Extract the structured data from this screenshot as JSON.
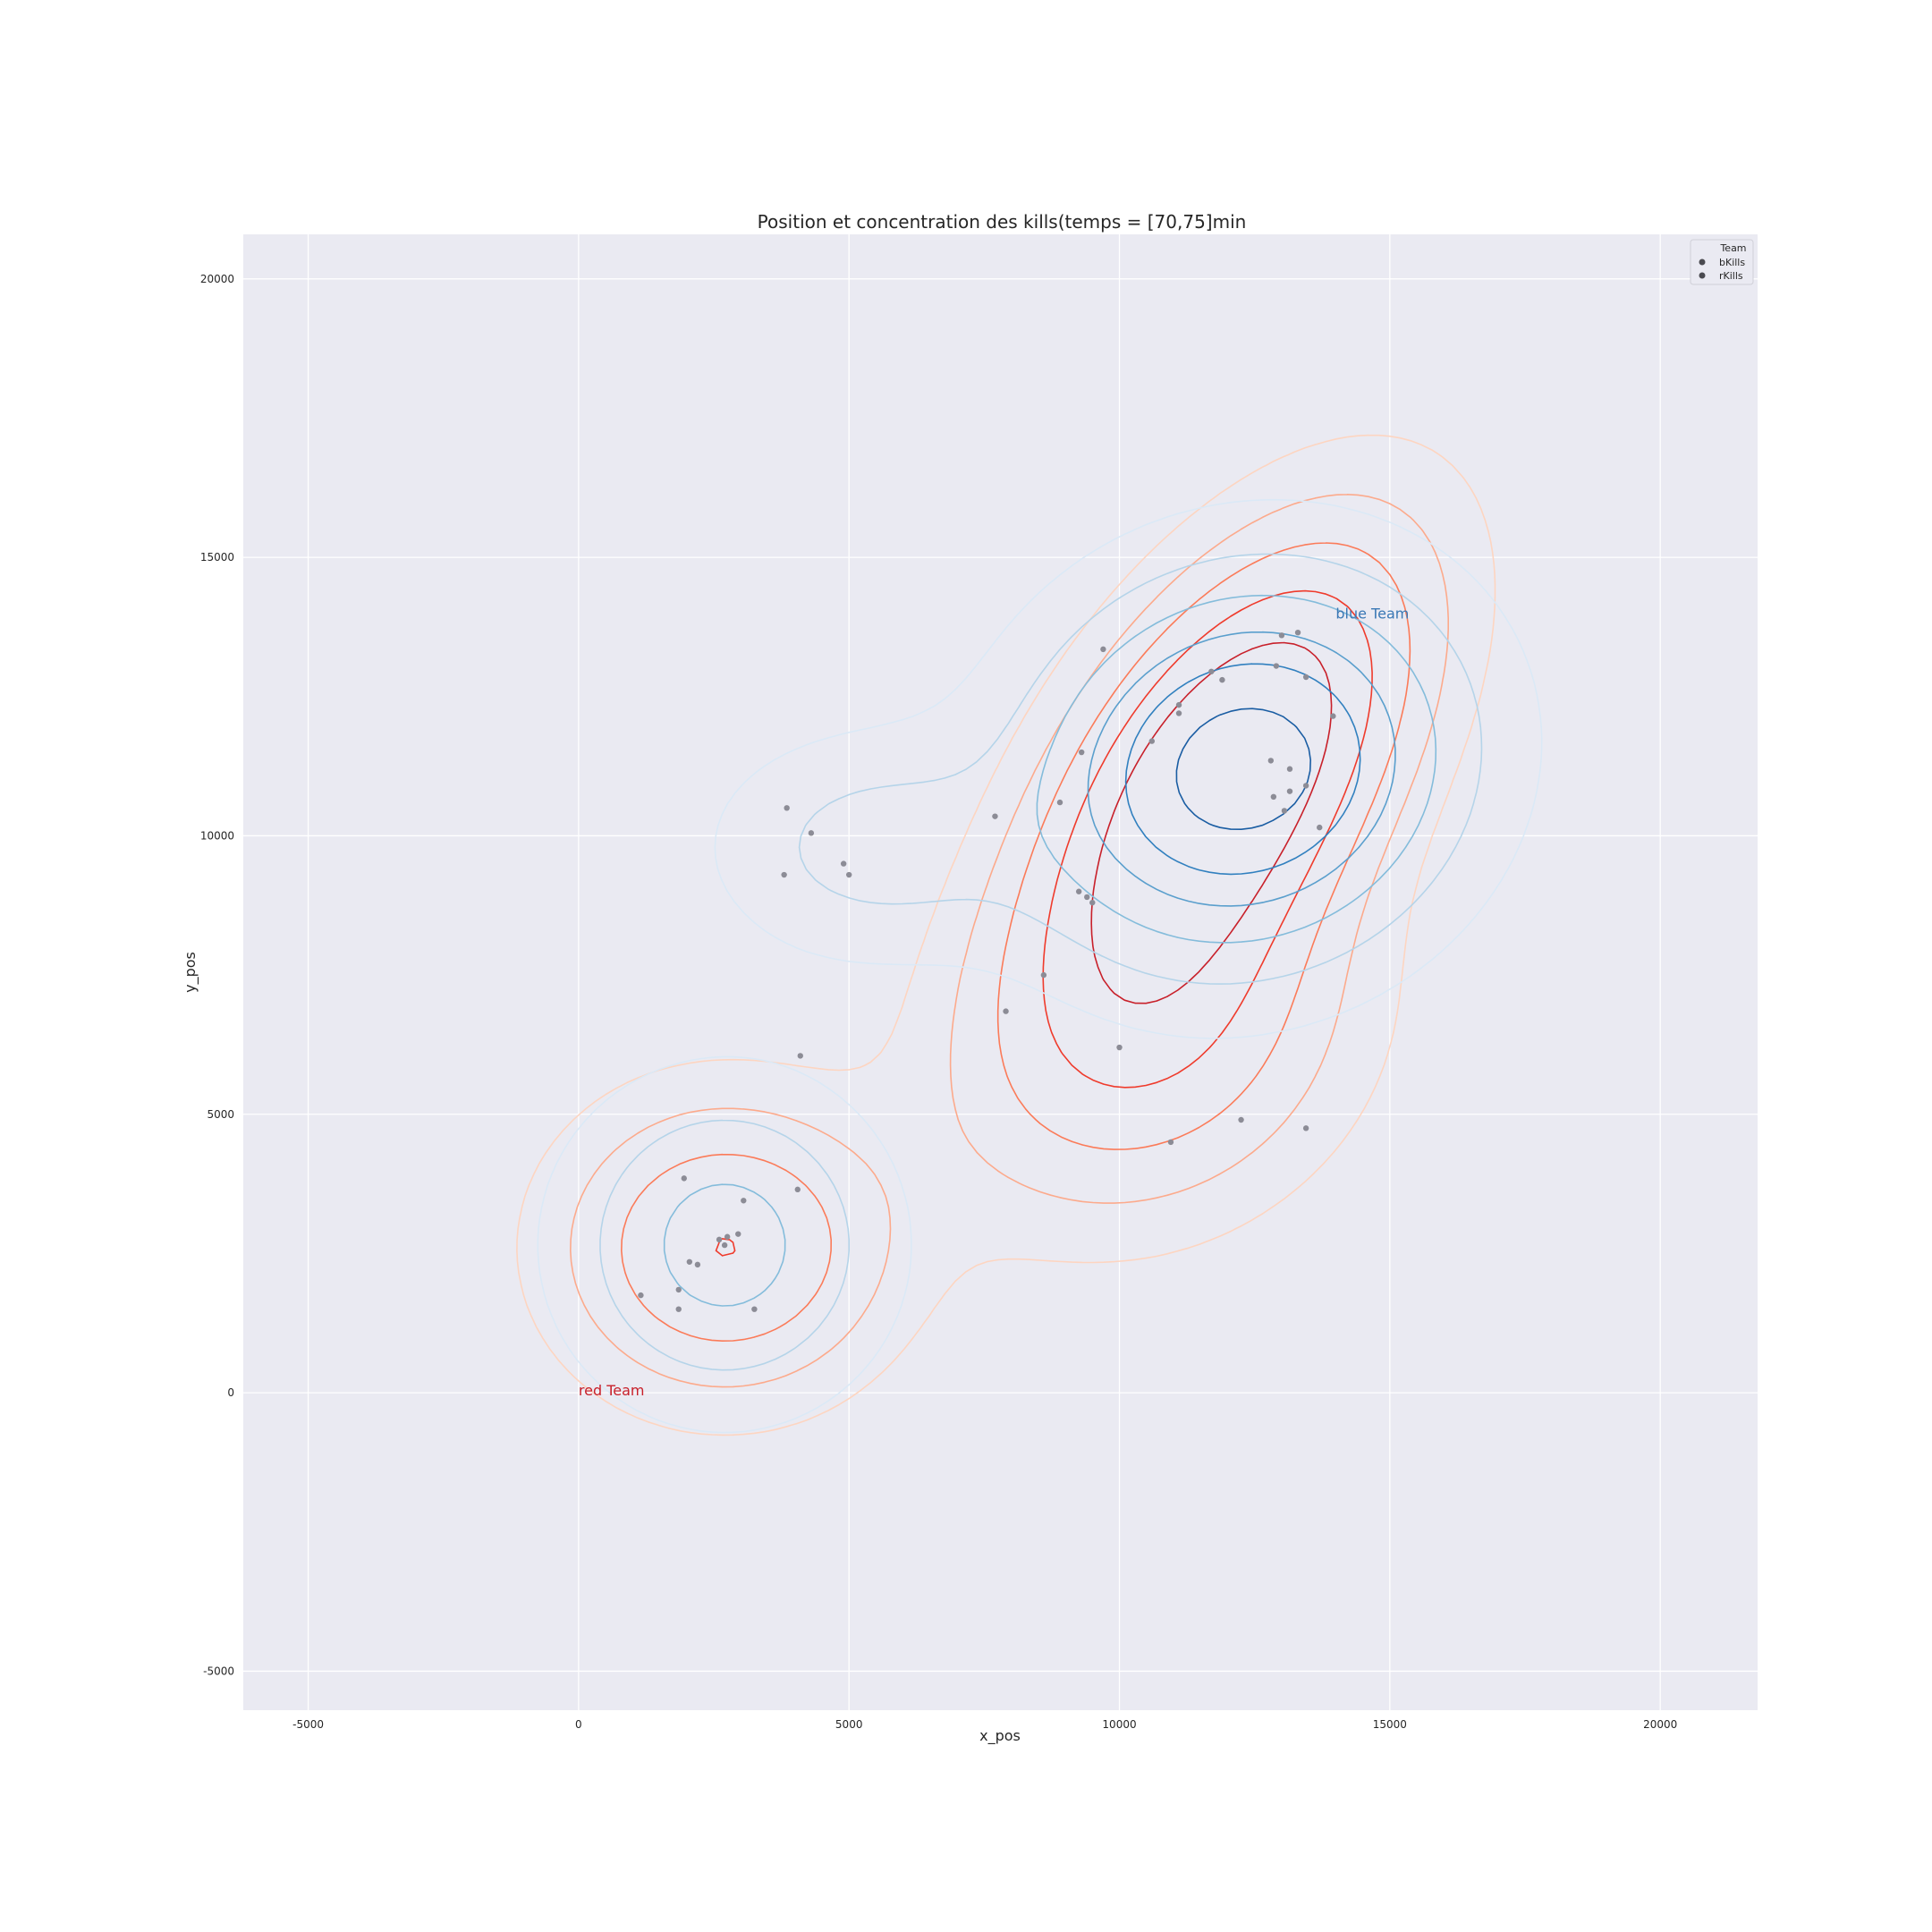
{
  "chart_data": {
    "type": "scatter",
    "title": "Position et concentration des kills(temps = [70,75]min",
    "xlabel": "x_pos",
    "ylabel": "y_pos",
    "xlim": [
      -6200,
      21800
    ],
    "ylim": [
      -5700,
      20800
    ],
    "xticks": [
      -5000,
      0,
      5000,
      10000,
      15000,
      20000
    ],
    "yticks": [
      -5000,
      0,
      5000,
      10000,
      15000,
      20000
    ],
    "grid": true,
    "legend": {
      "title": "Team",
      "placement": "top-right",
      "entries": [
        "bKills",
        "rKills"
      ]
    },
    "annotations": [
      {
        "text": "blue Team",
        "x": 14000,
        "y": 14000,
        "color": "#3a78b5"
      },
      {
        "text": "red Team",
        "x": 0,
        "y": 0,
        "color": "#c8202a"
      }
    ],
    "point_color": "#8c8c96",
    "points": [
      [
        9700,
        13350
      ],
      [
        11700,
        12950
      ],
      [
        11900,
        12800
      ],
      [
        13000,
        13600
      ],
      [
        13300,
        13650
      ],
      [
        12900,
        13050
      ],
      [
        13450,
        12850
      ],
      [
        11100,
        12350
      ],
      [
        11100,
        12200
      ],
      [
        13950,
        12150
      ],
      [
        10600,
        11700
      ],
      [
        9300,
        11500
      ],
      [
        12800,
        11350
      ],
      [
        13150,
        11200
      ],
      [
        13450,
        10900
      ],
      [
        13150,
        10800
      ],
      [
        12850,
        10700
      ],
      [
        13050,
        10450
      ],
      [
        13700,
        10150
      ],
      [
        8900,
        10600
      ],
      [
        7700,
        10350
      ],
      [
        3850,
        10500
      ],
      [
        4300,
        10050
      ],
      [
        4900,
        9500
      ],
      [
        5000,
        9300
      ],
      [
        3800,
        9300
      ],
      [
        9250,
        9000
      ],
      [
        9400,
        8900
      ],
      [
        9500,
        8800
      ],
      [
        8600,
        7500
      ],
      [
        7900,
        6850
      ],
      [
        10000,
        6200
      ],
      [
        4100,
        6050
      ],
      [
        12250,
        4900
      ],
      [
        10950,
        4500
      ],
      [
        13450,
        4750
      ],
      [
        1950,
        3850
      ],
      [
        3050,
        3450
      ],
      [
        4050,
        3650
      ],
      [
        2050,
        2350
      ],
      [
        2200,
        2300
      ],
      [
        2600,
        2750
      ],
      [
        2750,
        2800
      ],
      [
        2950,
        2850
      ],
      [
        2700,
        2650
      ],
      [
        1150,
        1750
      ],
      [
        1850,
        1850
      ],
      [
        1850,
        1500
      ],
      [
        3250,
        1500
      ]
    ],
    "density": {
      "blue": {
        "label": "bKills",
        "colors": [
          "#dbe9f6",
          "#b5d4e9",
          "#84bcdb",
          "#5a9fcd",
          "#3180bf",
          "#1a5da3"
        ],
        "components": [
          {
            "w": 0.6,
            "mx": 12300,
            "my": 11200,
            "sx": 2450,
            "sy": 2150,
            "r": 0.1
          },
          {
            "w": 0.25,
            "mx": 2700,
            "my": 2650,
            "sx": 1900,
            "sy": 1850,
            "r": 0.0
          },
          {
            "w": 0.15,
            "mx": 5400,
            "my": 9800,
            "sx": 1900,
            "sy": 1300,
            "r": 0.0
          }
        ],
        "levels": [
          0.08,
          0.2,
          0.35,
          0.52,
          0.68,
          0.88
        ]
      },
      "red": {
        "label": "rKills",
        "colors": [
          "#fdd5c1",
          "#fcaa8c",
          "#fb7b59",
          "#ef3b2c",
          "#c8202a"
        ],
        "components": [
          {
            "w": 0.55,
            "mx": 11900,
            "my": 11000,
            "sx": 2200,
            "sy": 2700,
            "r": 0.55
          },
          {
            "w": 0.25,
            "mx": 2700,
            "my": 2600,
            "sx": 2000,
            "sy": 1750,
            "r": 0.0
          },
          {
            "w": 0.2,
            "mx": 10700,
            "my": 6200,
            "sx": 2400,
            "sy": 2100,
            "r": 0.2
          }
        ],
        "levels": [
          0.07,
          0.16,
          0.28,
          0.44,
          0.64
        ]
      }
    }
  }
}
